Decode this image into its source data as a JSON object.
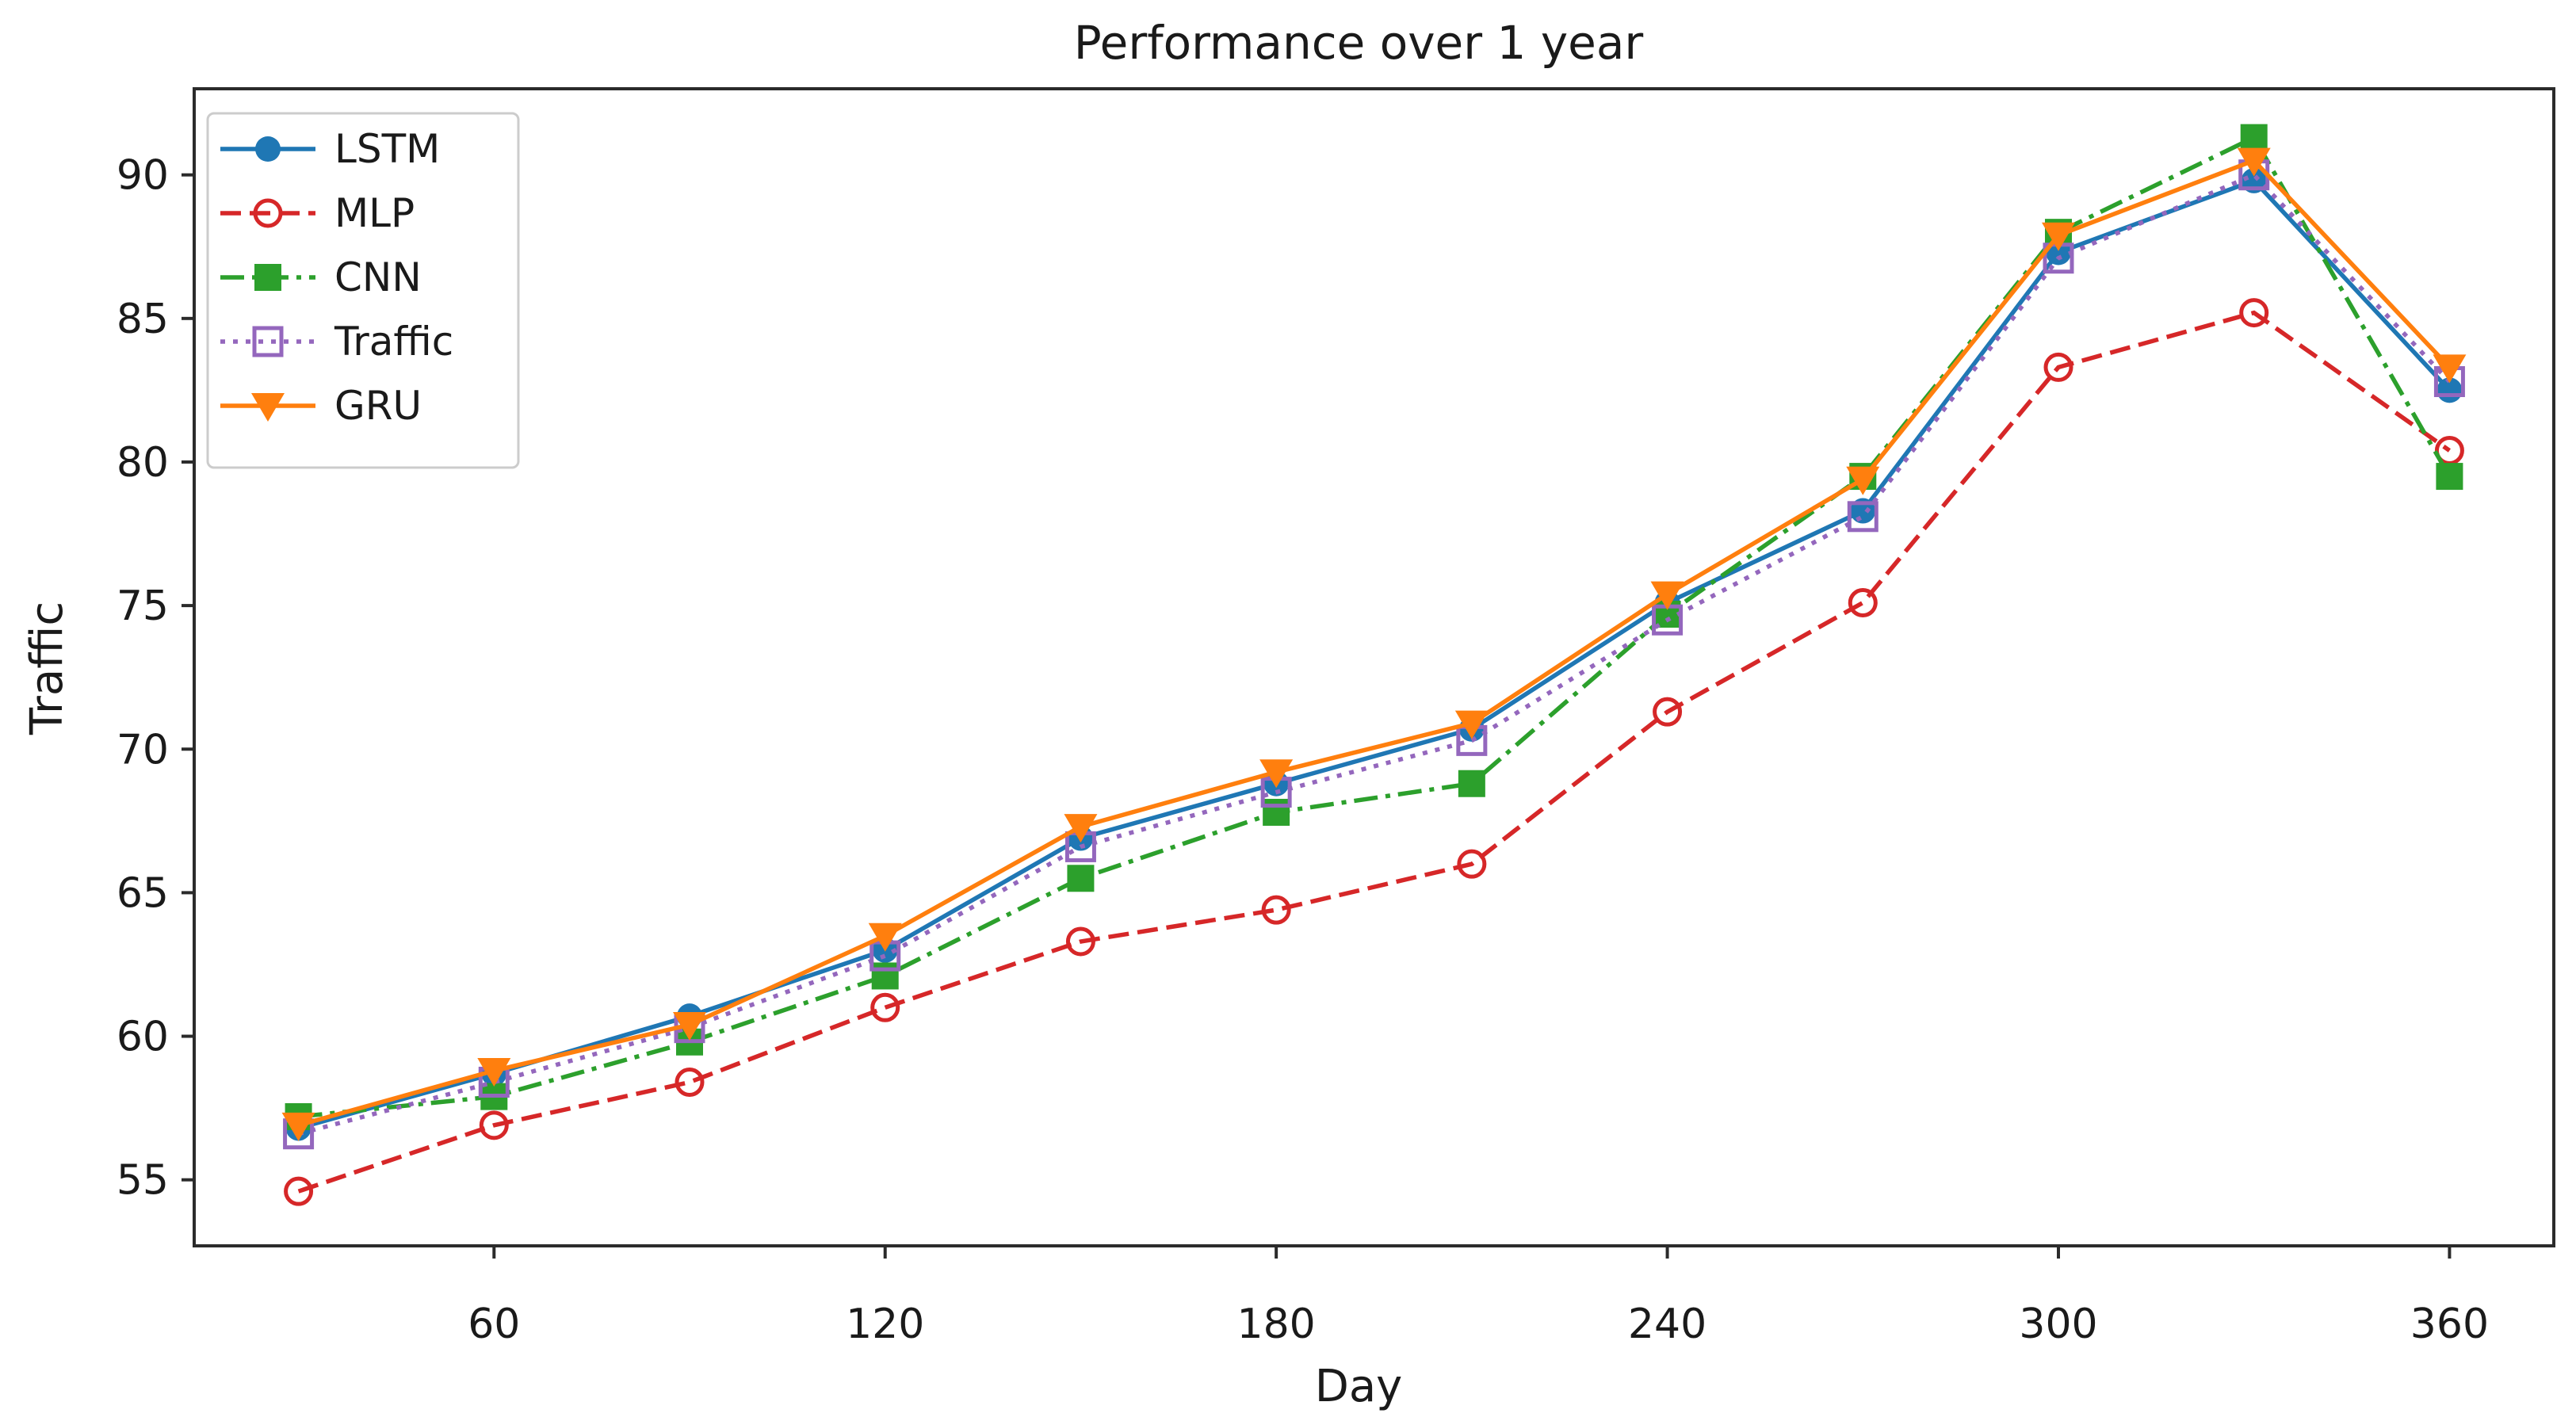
{
  "figure": {
    "background": "#ffffff",
    "text_color": "#1a1a1a",
    "spine_color": "#2b2b2b"
  },
  "chart_data": {
    "type": "line",
    "title": "Performance over 1 year",
    "xlabel": "Day",
    "ylabel": "Traffic",
    "grid": false,
    "legend_position": "upper left",
    "xlim": [
      14,
      376
    ],
    "ylim": [
      52.7,
      93.0
    ],
    "xticks": [
      60,
      120,
      180,
      240,
      300,
      360
    ],
    "yticks": [
      55,
      60,
      65,
      70,
      75,
      80,
      85,
      90
    ],
    "x": [
      30,
      60,
      90,
      120,
      150,
      180,
      210,
      240,
      270,
      300,
      330,
      360
    ],
    "series": [
      {
        "name": "LSTM",
        "color": "#1f77b4",
        "linestyle": "solid",
        "marker": "circle",
        "marker_filled": true,
        "values": [
          56.8,
          58.7,
          60.7,
          63.0,
          66.9,
          68.8,
          70.7,
          75.1,
          78.3,
          87.3,
          89.8,
          82.5
        ]
      },
      {
        "name": "MLP",
        "color": "#d62728",
        "linestyle": "dashed",
        "marker": "circle",
        "marker_filled": false,
        "values": [
          54.6,
          56.9,
          58.4,
          61.0,
          63.3,
          64.4,
          66.0,
          71.3,
          75.1,
          83.3,
          85.2,
          80.4
        ]
      },
      {
        "name": "CNN",
        "color": "#2ca02c",
        "linestyle": "dashdot",
        "marker": "square",
        "marker_filled": true,
        "values": [
          57.2,
          57.9,
          59.8,
          62.1,
          65.5,
          67.8,
          68.8,
          74.7,
          79.5,
          88.0,
          91.3,
          79.5
        ]
      },
      {
        "name": "Traffic",
        "color": "#9467bd",
        "linestyle": "dotted",
        "marker": "square",
        "marker_filled": false,
        "values": [
          56.6,
          58.4,
          60.3,
          62.8,
          66.6,
          68.5,
          70.3,
          74.5,
          78.1,
          87.1,
          90.0,
          82.8
        ]
      },
      {
        "name": "GRU",
        "color": "#ff7f0e",
        "linestyle": "solid",
        "marker": "triangle-down",
        "marker_filled": true,
        "values": [
          56.9,
          58.8,
          60.4,
          63.5,
          67.3,
          69.2,
          70.9,
          75.4,
          79.4,
          87.9,
          90.5,
          83.3
        ]
      }
    ]
  }
}
